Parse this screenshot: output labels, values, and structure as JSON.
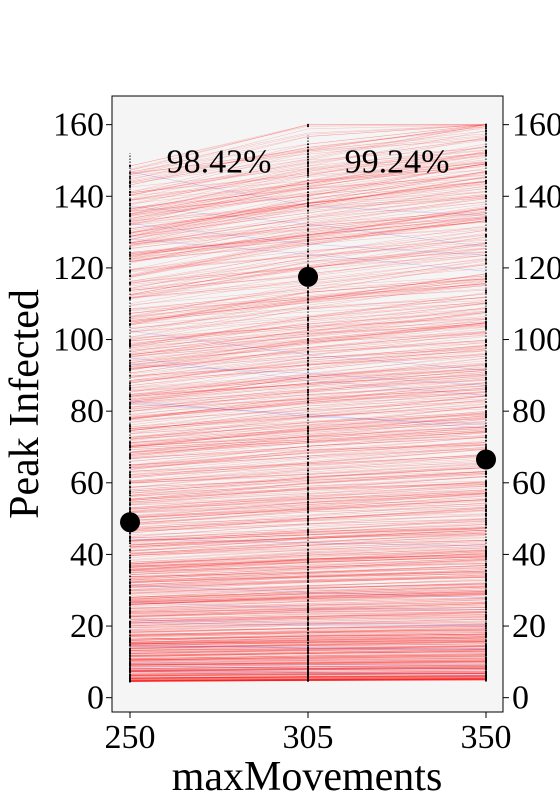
{
  "chart_data": {
    "type": "line",
    "xlabel": "maxMovements",
    "ylabel": "Peak Infected",
    "x": [
      250,
      305,
      350
    ],
    "x_tick_labels": [
      "250",
      "305",
      "350"
    ],
    "ylim": [
      -4,
      168
    ],
    "y_ticks": [
      0,
      20,
      40,
      60,
      80,
      100,
      120,
      140,
      160
    ],
    "y_tick_labels": [
      "0",
      "20",
      "40",
      "60",
      "80",
      "100",
      "120",
      "140",
      "160"
    ],
    "grid": false,
    "background": "#f5f5f5",
    "line_colors": {
      "increasing": "#ff0000",
      "decreasing": "#0000ff"
    },
    "segment_percentages": [
      "98.42%",
      "99.24%"
    ],
    "sample_count": 1000,
    "sample_range": {
      "min": 4.5,
      "max": 160
    },
    "highlighted_points": [
      {
        "x": 250,
        "y": 49
      },
      {
        "x": 305,
        "y": 117.5
      },
      {
        "x": 350,
        "y": 66.5
      }
    ],
    "marker_color": "#000000"
  }
}
